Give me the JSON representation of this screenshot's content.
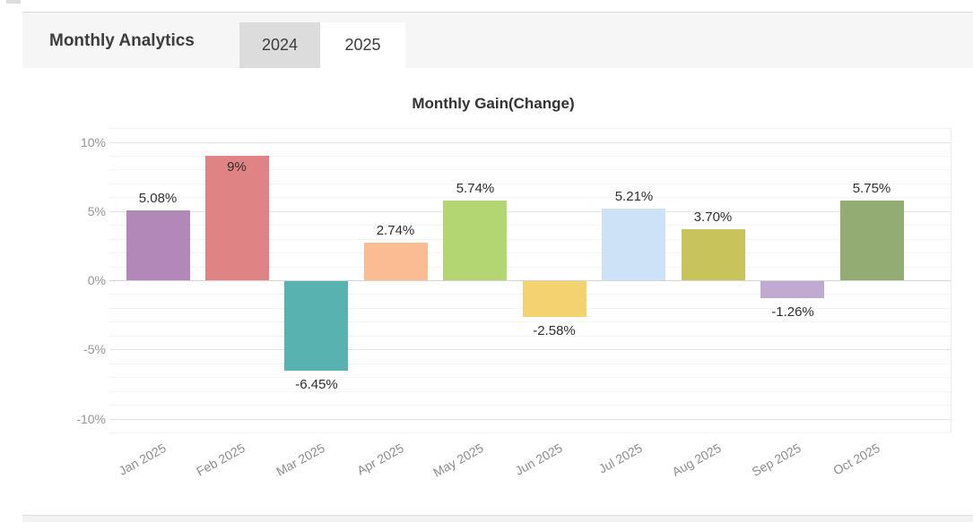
{
  "header": {
    "title": "Monthly Analytics",
    "tabs": [
      {
        "label": "2024",
        "active": false
      },
      {
        "label": "2025",
        "active": true
      }
    ]
  },
  "chart_data": {
    "type": "bar",
    "title": "Monthly Gain(Change)",
    "categories": [
      "Jan 2025",
      "Feb 2025",
      "Mar 2025",
      "Apr 2025",
      "May 2025",
      "Jun 2025",
      "Jul 2025",
      "Aug 2025",
      "Sep 2025",
      "Oct 2025"
    ],
    "values": [
      5.08,
      9,
      -6.45,
      2.74,
      5.74,
      -2.58,
      5.21,
      3.7,
      -1.26,
      5.75
    ],
    "value_labels": [
      "5.08%",
      "9%",
      "-6.45%",
      "2.74%",
      "5.74%",
      "-2.58%",
      "5.21%",
      "3.70%",
      "-1.26%",
      "5.75%"
    ],
    "bar_colors": [
      "#b188b7",
      "#e08384",
      "#58b2b0",
      "#fcbc92",
      "#b4d672",
      "#f5d270",
      "#cde2f4",
      "#c8c35b",
      "#c0aad1",
      "#92ac73"
    ],
    "y_ticks": [
      {
        "label": "10%",
        "value": 10
      },
      {
        "label": "5%",
        "value": 5
      },
      {
        "label": "0%",
        "value": 0
      },
      {
        "label": "-5%",
        "value": -5
      },
      {
        "label": "-10%",
        "value": -10
      }
    ],
    "ylim": [
      -11,
      11
    ],
    "xlabel": "",
    "ylabel": "",
    "grid": true,
    "legend_position": "none"
  }
}
